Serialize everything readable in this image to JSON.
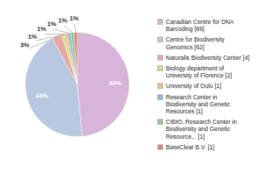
{
  "chart_data": {
    "type": "pie",
    "categories": [
      "Canadian Centre for DNA\nBarcoding [69]",
      "Centre for Biodiversity\nGenomics [62]",
      "Naturalis Biodiversity Center [4]",
      "Biology department of\nUniversity of Florence [2]",
      "University of Oulu [1]",
      "Research Center in\nBiodiversity and Genetic\nResources [1]",
      "CIBIO, Research Center in\nBiodiversity and Genetic\nResource... [1]",
      "BaseClear B.V. [1]"
    ],
    "values": [
      49,
      44,
      3,
      1,
      1,
      1,
      1,
      1
    ],
    "value_labels": [
      "49%",
      "44%",
      "3%",
      "1%",
      "1%",
      "1%",
      "1%",
      "1%"
    ],
    "data_labels": true,
    "colors": [
      "#d8b4d8",
      "#b8c8e0",
      "#e8a8a0",
      "#d4dc90",
      "#e8c080",
      "#90b8d8",
      "#90c890",
      "#e08878"
    ],
    "legend": "right"
  }
}
